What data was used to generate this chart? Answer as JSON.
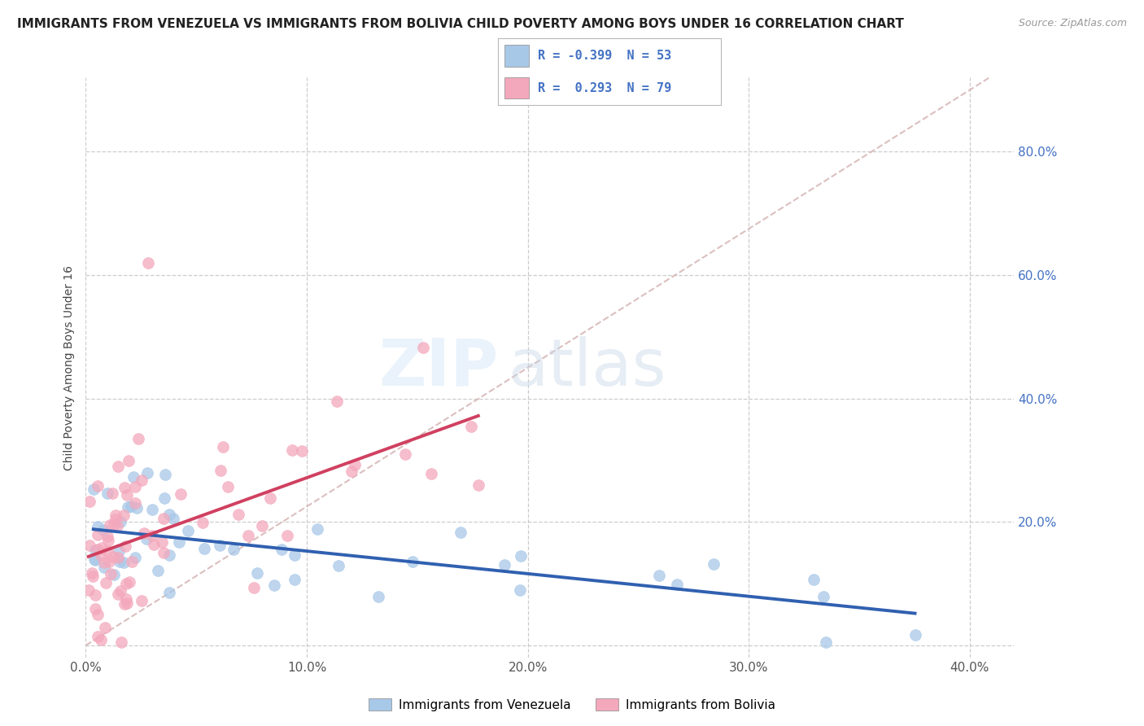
{
  "title": "IMMIGRANTS FROM VENEZUELA VS IMMIGRANTS FROM BOLIVIA CHILD POVERTY AMONG BOYS UNDER 16 CORRELATION CHART",
  "source": "Source: ZipAtlas.com",
  "ylabel": "Child Poverty Among Boys Under 16",
  "xlim": [
    0.0,
    0.42
  ],
  "ylim": [
    -0.02,
    0.92
  ],
  "xticks": [
    0.0,
    0.1,
    0.2,
    0.3,
    0.4
  ],
  "yticks": [
    0.0,
    0.2,
    0.4,
    0.6,
    0.8
  ],
  "xtick_labels": [
    "0.0%",
    "10.0%",
    "20.0%",
    "30.0%",
    "40.0%"
  ],
  "ytick_labels_right": [
    "",
    "20.0%",
    "40.0%",
    "60.0%",
    "80.0%"
  ],
  "venezuela_color": "#a8c8e8",
  "bolivia_color": "#f4a8bc",
  "venezuela_R": -0.399,
  "venezuela_N": 53,
  "bolivia_R": 0.293,
  "bolivia_N": 79,
  "legend_label_venezuela": "Immigrants from Venezuela",
  "legend_label_bolivia": "Immigrants from Bolivia",
  "watermark_zip": "ZIP",
  "watermark_atlas": "atlas",
  "background_color": "#ffffff",
  "grid_color": "#c8c8c8",
  "title_fontsize": 11,
  "axis_fontsize": 10,
  "tick_fontsize": 11,
  "venezuela_line_color": "#3060b0",
  "bolivia_line_color": "#d04060",
  "diagonal_color": "#d8b8b8",
  "seed_ven": 77,
  "seed_bol": 88
}
